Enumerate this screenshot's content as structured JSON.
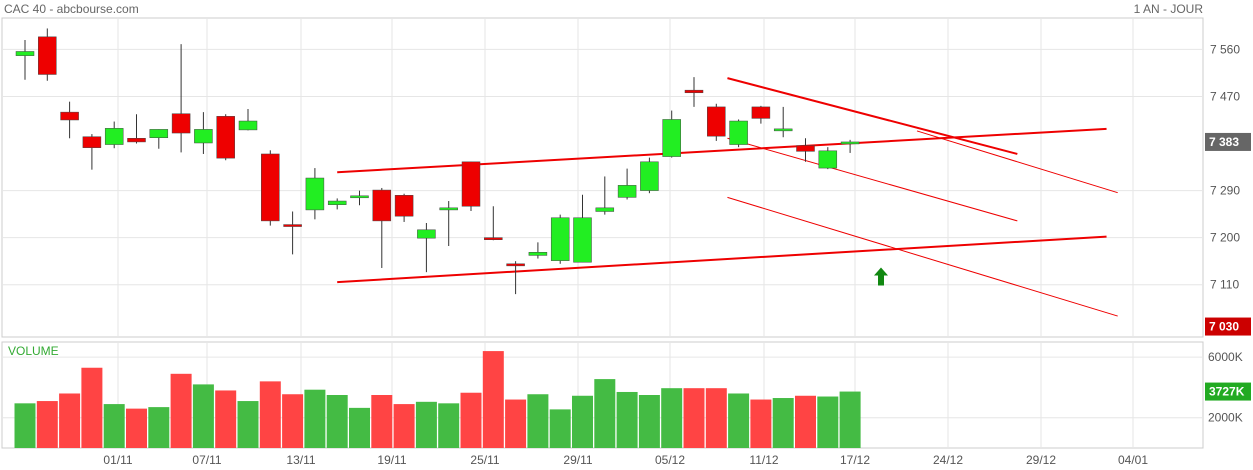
{
  "header": {
    "title": "CAC 40 - abcbourse.com",
    "period": "1 AN - JOUR"
  },
  "colors": {
    "up": "#22ee22",
    "down": "#ee0000",
    "vol_up": "#44bb44",
    "vol_down": "#ff4444",
    "trend": "#ee0000",
    "grid": "#e6e6e6",
    "last_tag": "#666666",
    "level_tag": "#cc0000",
    "vol_tag": "#22aa22",
    "arrow": "#118811"
  },
  "chart_data": [
    {
      "type": "candlestick",
      "title": "CAC 40 - abcbourse.com",
      "ylim": [
        7010,
        7620
      ],
      "yticks": [
        7110,
        7200,
        7290,
        7383,
        7470,
        7560
      ],
      "ytick_labels": [
        "7 110",
        "7 200",
        "7 290",
        "7 383",
        "7 470",
        "7 560"
      ],
      "grid": true,
      "x_tick_labels": [
        "01/11",
        "07/11",
        "13/11",
        "19/11",
        "25/11",
        "29/11",
        "05/12",
        "11/12",
        "17/12",
        "24/12",
        "29/12",
        "04/01"
      ],
      "last_value_label": "7 383",
      "level_label": "7 030",
      "candles": [
        {
          "date": "28/10",
          "open": 7548,
          "high": 7578,
          "low": 7502,
          "close": 7556
        },
        {
          "date": "29/10",
          "open": 7584,
          "high": 7600,
          "low": 7500,
          "close": 7512
        },
        {
          "date": "30/10",
          "open": 7440,
          "high": 7460,
          "low": 7390,
          "close": 7425
        },
        {
          "date": "31/10",
          "open": 7393,
          "high": 7398,
          "low": 7330,
          "close": 7372
        },
        {
          "date": "01/11",
          "open": 7378,
          "high": 7422,
          "low": 7371,
          "close": 7409
        },
        {
          "date": "04/11",
          "open": 7390,
          "high": 7436,
          "low": 7380,
          "close": 7383
        },
        {
          "date": "05/11",
          "open": 7391,
          "high": 7407,
          "low": 7370,
          "close": 7407
        },
        {
          "date": "06/11",
          "open": 7437,
          "high": 7570,
          "low": 7363,
          "close": 7400
        },
        {
          "date": "07/11",
          "open": 7381,
          "high": 7440,
          "low": 7360,
          "close": 7407
        },
        {
          "date": "08/11",
          "open": 7432,
          "high": 7436,
          "low": 7348,
          "close": 7352
        },
        {
          "date": "11/11",
          "open": 7406,
          "high": 7446,
          "low": 7405,
          "close": 7423
        },
        {
          "date": "12/11",
          "open": 7360,
          "high": 7367,
          "low": 7223,
          "close": 7232
        },
        {
          "date": "13/11",
          "open": 7225,
          "high": 7250,
          "low": 7168,
          "close": 7224
        },
        {
          "date": "14/11",
          "open": 7253,
          "high": 7333,
          "low": 7235,
          "close": 7314
        },
        {
          "date": "15/11",
          "open": 7263,
          "high": 7275,
          "low": 7254,
          "close": 7270
        },
        {
          "date": "18/11",
          "open": 7278,
          "high": 7290,
          "low": 7262,
          "close": 7280
        },
        {
          "date": "19/11",
          "open": 7291,
          "high": 7295,
          "low": 7142,
          "close": 7232
        },
        {
          "date": "20/11",
          "open": 7281,
          "high": 7284,
          "low": 7230,
          "close": 7241
        },
        {
          "date": "21/11",
          "open": 7199,
          "high": 7228,
          "low": 7134,
          "close": 7215
        },
        {
          "date": "22/11",
          "open": 7253,
          "high": 7270,
          "low": 7184,
          "close": 7257
        },
        {
          "date": "25/11",
          "open": 7345,
          "high": 7345,
          "low": 7251,
          "close": 7260
        },
        {
          "date": "26/11",
          "open": 7200,
          "high": 7260,
          "low": 7195,
          "close": 7196
        },
        {
          "date": "27/11",
          "open": 7150,
          "high": 7155,
          "low": 7092,
          "close": 7146
        },
        {
          "date": "28/11",
          "open": 7166,
          "high": 7191,
          "low": 7160,
          "close": 7172
        },
        {
          "date": "29/11",
          "open": 7156,
          "high": 7244,
          "low": 7150,
          "close": 7238
        },
        {
          "date": "02/12",
          "open": 7153,
          "high": 7282,
          "low": 7153,
          "close": 7238
        },
        {
          "date": "03/12",
          "open": 7250,
          "high": 7317,
          "low": 7244,
          "close": 7257
        },
        {
          "date": "04/12",
          "open": 7277,
          "high": 7332,
          "low": 7273,
          "close": 7300
        },
        {
          "date": "05/12",
          "open": 7290,
          "high": 7353,
          "low": 7285,
          "close": 7345
        },
        {
          "date": "06/12",
          "open": 7355,
          "high": 7443,
          "low": 7353,
          "close": 7426
        },
        {
          "date": "09/12",
          "open": 7482,
          "high": 7507,
          "low": 7450,
          "close": 7477
        },
        {
          "date": "10/12",
          "open": 7450,
          "high": 7456,
          "low": 7385,
          "close": 7394
        },
        {
          "date": "11/12",
          "open": 7378,
          "high": 7426,
          "low": 7373,
          "close": 7423
        },
        {
          "date": "12/12",
          "open": 7450,
          "high": 7452,
          "low": 7418,
          "close": 7428
        },
        {
          "date": "13/12",
          "open": 7408,
          "high": 7450,
          "low": 7392,
          "close": 7408
        },
        {
          "date": "16/12",
          "open": 7376,
          "high": 7390,
          "low": 7345,
          "close": 7365
        },
        {
          "date": "17/12",
          "open": 7333,
          "high": 7373,
          "low": 7331,
          "close": 7366
        },
        {
          "date": "18/12",
          "open": 7380,
          "high": 7387,
          "low": 7362,
          "close": 7383
        }
      ]
    },
    {
      "type": "bar",
      "title": "VOLUME",
      "ylim": [
        0,
        7000
      ],
      "yticks": [
        2000,
        6000
      ],
      "ytick_labels": [
        "2000K",
        "6000K"
      ],
      "last_value_label": "3727K",
      "values": [
        2950,
        3100,
        3600,
        5300,
        2900,
        2600,
        2700,
        4900,
        4200,
        3800,
        3100,
        4400,
        3550,
        3850,
        3500,
        2650,
        3500,
        2900,
        3050,
        2950,
        3650,
        6400,
        3200,
        3550,
        2550,
        3450,
        4550,
        3700,
        3500,
        3950,
        3950,
        3950,
        3600,
        3200,
        3300,
        3450,
        3400,
        3727
      ]
    }
  ]
}
